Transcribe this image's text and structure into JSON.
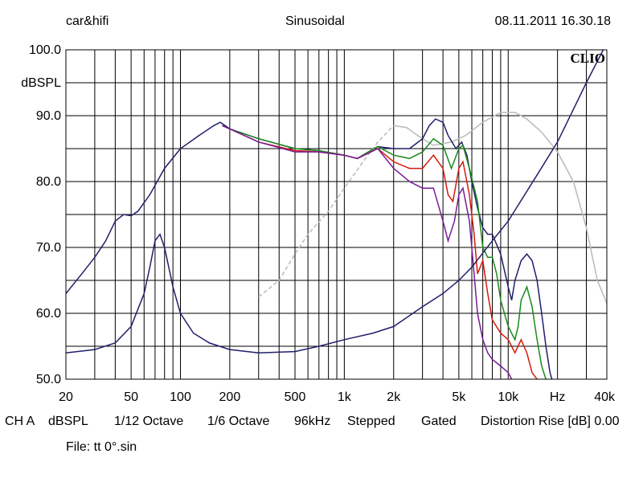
{
  "header": {
    "left": "car&hifi",
    "center": "Sinusoidal",
    "right": "08.11.2011 16.30.18"
  },
  "footer": {
    "channel": "CH A",
    "units": "dBSPL",
    "smoothing1": "1/12 Octave",
    "smoothing2": "1/6 Octave",
    "rate": "96kHz",
    "mode": "Stepped",
    "gating": "Gated",
    "distortion": "Distortion Rise [dB] 0.00",
    "file": "File: tt 0°.sin"
  },
  "chart_data": {
    "type": "line",
    "logo": "CLIO",
    "ylabel": "dBSPL",
    "xunit": "Hz",
    "ylim": [
      50,
      100
    ],
    "xlim": [
      20,
      40000
    ],
    "xscale": "log",
    "grid": true,
    "y_ticks": [
      "100.0",
      "90.0",
      "80.0",
      "70.0",
      "60.0",
      "50.0"
    ],
    "x_ticks": [
      "20",
      "50",
      "100",
      "200",
      "500",
      "1k",
      "2k",
      "5k",
      "10k",
      "Hz",
      "40k"
    ],
    "colors": {
      "navy": "#1f1f6b",
      "green": "#1a8a1a",
      "red": "#d41a0a",
      "purple": "#7a1a9a",
      "gray": "#bdbdbd",
      "grid": "#000000"
    },
    "series": [
      {
        "color": "#bdbdbd",
        "dashed_until": 2000,
        "points": [
          [
            300,
            62.5
          ],
          [
            400,
            65
          ],
          [
            500,
            69
          ],
          [
            600,
            72
          ],
          [
            800,
            75.5
          ],
          [
            1000,
            79
          ],
          [
            1300,
            83
          ],
          [
            1600,
            86
          ],
          [
            2000,
            88.5
          ],
          [
            2400,
            88.2
          ],
          [
            2800,
            87
          ],
          [
            3500,
            85.5
          ],
          [
            4500,
            86
          ],
          [
            5500,
            87
          ],
          [
            7000,
            89
          ],
          [
            9000,
            90.5
          ],
          [
            11000,
            90.5
          ],
          [
            13000,
            89.5
          ],
          [
            16000,
            87.5
          ],
          [
            20000,
            84.5
          ],
          [
            25000,
            80
          ],
          [
            30000,
            73
          ],
          [
            35000,
            65
          ],
          [
            40000,
            61.5
          ]
        ]
      },
      {
        "color": "#1f1f6b",
        "points": [
          [
            20,
            63
          ],
          [
            25,
            66
          ],
          [
            30,
            68.5
          ],
          [
            35,
            71
          ],
          [
            40,
            74
          ],
          [
            45,
            75
          ],
          [
            50,
            74.8
          ],
          [
            55,
            75.5
          ],
          [
            65,
            78
          ],
          [
            80,
            82
          ],
          [
            100,
            85
          ],
          [
            130,
            87
          ],
          [
            160,
            88.5
          ],
          [
            175,
            89
          ],
          [
            200,
            88
          ],
          [
            300,
            86.5
          ],
          [
            500,
            85
          ],
          [
            700,
            84.7
          ],
          [
            1000,
            84
          ],
          [
            1200,
            83.5
          ],
          [
            1400,
            84.5
          ],
          [
            1600,
            85.3
          ],
          [
            2000,
            85
          ],
          [
            2500,
            85
          ],
          [
            3000,
            86.5
          ],
          [
            3300,
            88.5
          ],
          [
            3600,
            89.5
          ],
          [
            4000,
            89
          ],
          [
            4300,
            87
          ],
          [
            4800,
            85
          ],
          [
            5200,
            86
          ],
          [
            5600,
            84
          ],
          [
            6000,
            80
          ],
          [
            6500,
            76
          ],
          [
            7000,
            73
          ],
          [
            7500,
            72
          ],
          [
            8000,
            72
          ],
          [
            9000,
            69
          ],
          [
            10000,
            64
          ],
          [
            10500,
            62
          ],
          [
            11000,
            65
          ],
          [
            12000,
            68
          ],
          [
            13000,
            69
          ],
          [
            14000,
            68
          ],
          [
            15000,
            65
          ],
          [
            16000,
            60
          ],
          [
            17000,
            55
          ],
          [
            18000,
            51
          ],
          [
            19000,
            49
          ]
        ]
      },
      {
        "color": "#1a8a1a",
        "points": [
          [
            180,
            88.5
          ],
          [
            200,
            88
          ],
          [
            300,
            86.5
          ],
          [
            500,
            85
          ],
          [
            700,
            84.7
          ],
          [
            1000,
            84
          ],
          [
            1200,
            83.5
          ],
          [
            1400,
            84.5
          ],
          [
            1600,
            85.3
          ],
          [
            2000,
            84
          ],
          [
            2500,
            83.5
          ],
          [
            3000,
            84.5
          ],
          [
            3500,
            86.5
          ],
          [
            4000,
            85.5
          ],
          [
            4500,
            82
          ],
          [
            5000,
            85
          ],
          [
            5300,
            85.5
          ],
          [
            5800,
            82
          ],
          [
            6500,
            77
          ],
          [
            7000,
            70
          ],
          [
            7500,
            68.5
          ],
          [
            8000,
            68.5
          ],
          [
            8500,
            66
          ],
          [
            9000,
            62
          ],
          [
            10000,
            58
          ],
          [
            11000,
            56
          ],
          [
            11500,
            58
          ],
          [
            12000,
            62
          ],
          [
            13000,
            64
          ],
          [
            14000,
            61
          ],
          [
            15000,
            56
          ],
          [
            16000,
            52
          ],
          [
            17000,
            50
          ]
        ]
      },
      {
        "color": "#d41a0a",
        "points": [
          [
            180,
            88.5
          ],
          [
            200,
            88
          ],
          [
            300,
            86
          ],
          [
            500,
            84.7
          ],
          [
            700,
            84.5
          ],
          [
            1000,
            84
          ],
          [
            1200,
            83.5
          ],
          [
            1400,
            84.3
          ],
          [
            1600,
            85
          ],
          [
            2000,
            83
          ],
          [
            2500,
            82
          ],
          [
            3000,
            82
          ],
          [
            3500,
            84
          ],
          [
            4000,
            82
          ],
          [
            4300,
            78
          ],
          [
            4600,
            77
          ],
          [
            5000,
            82
          ],
          [
            5300,
            83
          ],
          [
            5800,
            78
          ],
          [
            6200,
            72
          ],
          [
            6500,
            66
          ],
          [
            7000,
            68
          ],
          [
            7500,
            63
          ],
          [
            8000,
            59
          ],
          [
            9000,
            57
          ],
          [
            10000,
            56
          ],
          [
            11000,
            54
          ],
          [
            12000,
            56
          ],
          [
            13000,
            54
          ],
          [
            14000,
            51
          ],
          [
            15000,
            50
          ]
        ]
      },
      {
        "color": "#7a1a9a",
        "points": [
          [
            180,
            88.5
          ],
          [
            200,
            88
          ],
          [
            300,
            86
          ],
          [
            500,
            84.5
          ],
          [
            700,
            84.5
          ],
          [
            1000,
            84
          ],
          [
            1200,
            83.5
          ],
          [
            1400,
            84.3
          ],
          [
            1600,
            85
          ],
          [
            2000,
            82
          ],
          [
            2500,
            80
          ],
          [
            3000,
            79
          ],
          [
            3500,
            79
          ],
          [
            4000,
            74
          ],
          [
            4300,
            71
          ],
          [
            4700,
            74
          ],
          [
            5000,
            78
          ],
          [
            5300,
            79
          ],
          [
            5800,
            74
          ],
          [
            6200,
            66
          ],
          [
            6500,
            60
          ],
          [
            7000,
            56
          ],
          [
            7500,
            54
          ],
          [
            8000,
            53
          ],
          [
            9000,
            52
          ],
          [
            10000,
            51
          ],
          [
            11000,
            49
          ]
        ]
      },
      {
        "color": "#1f1f6b",
        "points": [
          [
            20,
            54
          ],
          [
            30,
            54.5
          ],
          [
            40,
            55.5
          ],
          [
            50,
            58
          ],
          [
            60,
            63
          ],
          [
            65,
            67
          ],
          [
            70,
            71
          ],
          [
            75,
            72
          ],
          [
            80,
            70
          ],
          [
            90,
            64
          ],
          [
            100,
            60
          ],
          [
            120,
            57
          ],
          [
            150,
            55.5
          ],
          [
            200,
            54.5
          ],
          [
            300,
            54
          ],
          [
            500,
            54.2
          ],
          [
            700,
            55
          ],
          [
            1000,
            56
          ],
          [
            1500,
            57
          ],
          [
            2000,
            58
          ],
          [
            3000,
            61
          ],
          [
            4000,
            63
          ],
          [
            5000,
            65
          ],
          [
            6000,
            67
          ],
          [
            8000,
            71
          ],
          [
            10000,
            74
          ],
          [
            15000,
            81
          ],
          [
            20000,
            86
          ],
          [
            30000,
            95
          ],
          [
            38000,
            100
          ]
        ]
      }
    ]
  }
}
